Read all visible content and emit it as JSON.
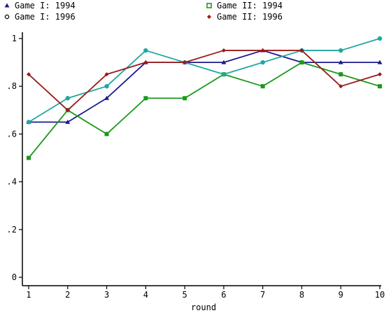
{
  "chart_data": {
    "type": "line",
    "title": "",
    "xlabel": "round",
    "ylabel": "",
    "x": [
      1,
      2,
      3,
      4,
      5,
      6,
      7,
      8,
      9,
      10
    ],
    "x_ticks": [
      "1",
      "2",
      "3",
      "4",
      "5",
      "6",
      "7",
      "8",
      "9",
      "10"
    ],
    "y_ticks": [
      "0",
      ".2",
      ".4",
      ".6",
      ".8",
      "1"
    ],
    "y_tick_values": [
      0,
      0.2,
      0.4,
      0.6,
      0.8,
      1.0
    ],
    "xlim": [
      1,
      10
    ],
    "ylim": [
      0,
      1
    ],
    "grid": false,
    "legend_position": "top",
    "series": [
      {
        "name": "Game I: 1994",
        "color": "#1a1a8c",
        "marker": "triangle",
        "values": [
          0.65,
          0.65,
          0.75,
          0.9,
          0.9,
          0.9,
          0.95,
          0.9,
          0.9,
          0.9
        ]
      },
      {
        "name": "Game II: 1994",
        "color": "#1a9a1a",
        "marker": "square",
        "values": [
          0.5,
          0.7,
          0.6,
          0.75,
          0.75,
          0.85,
          0.8,
          0.9,
          0.85,
          0.8
        ]
      },
      {
        "name": "Game I: 1996",
        "color": "#20a8a0",
        "marker": "circle",
        "values": [
          0.65,
          0.75,
          0.8,
          0.95,
          0.9,
          0.85,
          0.9,
          0.95,
          0.95,
          1.0
        ]
      },
      {
        "name": "Game II: 1996",
        "color": "#9a1a1a",
        "marker": "diamond",
        "values": [
          0.85,
          0.7,
          0.85,
          0.9,
          0.9,
          0.95,
          0.95,
          0.95,
          0.8,
          0.85
        ]
      }
    ]
  }
}
